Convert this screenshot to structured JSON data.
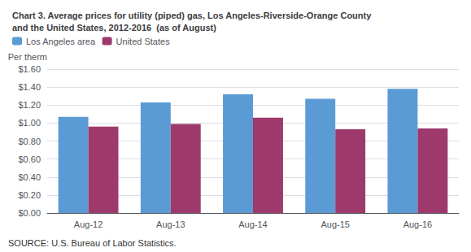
{
  "chart_data": {
    "type": "bar",
    "title": "Chart 3. Average prices for utility (piped) gas, Los Angeles-Riverside-Orange County\nand the United States, 2012-2016  (as of August)",
    "ylabel": "Per therm",
    "annotations": [
      "SOURCE: U.S. Bureau of Labor Statistics."
    ],
    "categories": [
      "Aug-12",
      "Aug-13",
      "Aug-14",
      "Aug-15",
      "Aug-16"
    ],
    "series": [
      {
        "name": "Los Angeles area",
        "color": "#5B9BD5",
        "values": [
          1.07,
          1.23,
          1.32,
          1.27,
          1.38
        ]
      },
      {
        "name": "United States",
        "color": "#9E3A6B",
        "values": [
          0.96,
          0.99,
          1.06,
          0.93,
          0.94
        ]
      }
    ],
    "ylim": [
      0,
      1.6
    ],
    "yticks": [
      {
        "value": 0,
        "label": "$0.00"
      },
      {
        "value": 0.2,
        "label": "$0.20"
      },
      {
        "value": 0.4,
        "label": "$0.40"
      },
      {
        "value": 0.6,
        "label": "$0.60"
      },
      {
        "value": 0.8,
        "label": "$0.80"
      },
      {
        "value": 1.0,
        "label": "$1.00"
      },
      {
        "value": 1.2,
        "label": "$1.20"
      },
      {
        "value": 1.4,
        "label": "$1.40"
      },
      {
        "value": 1.6,
        "label": "$1.60"
      }
    ],
    "grid": true,
    "legend": "upper left"
  }
}
